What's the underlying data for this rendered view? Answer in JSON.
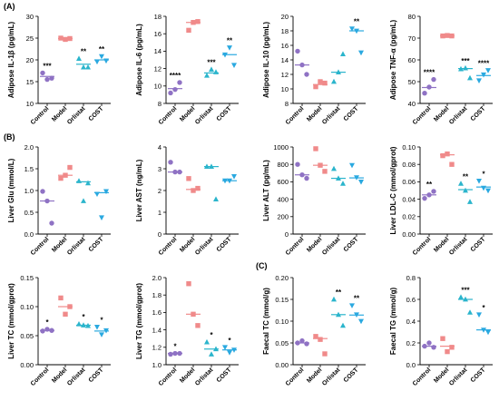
{
  "panel_labels": {
    "A": "(A)",
    "B": "(B)",
    "C": "(C)"
  },
  "colors": {
    "Control": "#8f72c4",
    "Model": "#f08a8a",
    "Orlistat": "#2bb5cc",
    "COST": "#2aa9e0"
  },
  "chart_data": [
    {
      "type": "scatter",
      "ylabel": "Adipose IL-1β (pg/mL)",
      "categories": [
        "Control",
        "Model",
        "Orlistat",
        "COST"
      ],
      "ylim": [
        10,
        30
      ],
      "yticks": [
        10,
        15,
        20,
        25,
        30
      ],
      "tick_labels": [
        "10",
        "15",
        "20",
        "25",
        "30"
      ],
      "markers": [
        "circle",
        "square",
        "triangle-up",
        "triangle-down"
      ],
      "points": [
        [
          17,
          15.5,
          15.8
        ],
        [
          25,
          24.7,
          24.9
        ],
        [
          20.3,
          18.3,
          18.3
        ],
        [
          19.6,
          20.8,
          19.8
        ]
      ],
      "means": [
        16.2,
        24.9,
        19,
        20
      ],
      "significance": [
        "***",
        "",
        "**",
        "**"
      ]
    },
    {
      "type": "scatter",
      "ylabel": "Adipose IL-6 (pg/mL)",
      "categories": [
        "Control",
        "Model",
        "Orlistat",
        "COST"
      ],
      "ylim": [
        8,
        18
      ],
      "yticks": [
        8,
        10,
        12,
        14,
        16,
        18
      ],
      "tick_labels": [
        "8",
        "10",
        "12",
        "14",
        "16",
        "18"
      ],
      "markers": [
        "circle",
        "square",
        "triangle-up",
        "triangle-down"
      ],
      "points": [
        [
          9.2,
          9.6,
          10.4
        ],
        [
          16.4,
          17.3,
          17.4
        ],
        [
          11.2,
          11.9,
          11.6
        ],
        [
          13.6,
          14.4,
          12.4
        ]
      ],
      "means": [
        9.7,
        17.3,
        11.5,
        13.6
      ],
      "significance": [
        "****",
        "",
        "***",
        "**"
      ]
    },
    {
      "type": "scatter",
      "ylabel": "Adipose IL-10 (pg/mL)",
      "categories": [
        "Control",
        "Model",
        "Orlistat",
        "COST"
      ],
      "ylim": [
        8,
        20
      ],
      "yticks": [
        8,
        10,
        12,
        14,
        16,
        18,
        20
      ],
      "tick_labels": [
        "8",
        "10",
        "12",
        "14",
        "16",
        "18",
        "20"
      ],
      "markers": [
        "circle",
        "square",
        "triangle-up",
        "triangle-down"
      ],
      "points": [
        [
          15.2,
          13.3,
          12
        ],
        [
          10.3,
          11,
          10.8
        ],
        [
          11,
          12.3,
          14.8
        ],
        [
          18.3,
          18,
          15
        ]
      ],
      "means": [
        13.3,
        10.6,
        12.3,
        18
      ],
      "significance": [
        "",
        "",
        "",
        "**"
      ]
    },
    {
      "type": "scatter",
      "ylabel": "Adipose TNF-α (pg/mL)",
      "categories": [
        "Control",
        "Model",
        "Orlistat",
        "COST"
      ],
      "ylim": [
        40,
        80
      ],
      "yticks": [
        40,
        50,
        60,
        70,
        80
      ],
      "tick_labels": [
        "40",
        "50",
        "60",
        "70",
        "80"
      ],
      "markers": [
        "circle",
        "square",
        "triangle-up",
        "triangle-down"
      ],
      "points": [
        [
          44.7,
          47.5,
          51
        ],
        [
          71,
          71.2,
          71
        ],
        [
          55.8,
          56.2,
          51.7
        ],
        [
          50.5,
          53.2,
          55.2
        ]
      ],
      "means": [
        47.3,
        71,
        56,
        52.8
      ],
      "significance": [
        "****",
        "",
        "***",
        "****"
      ]
    },
    {
      "type": "scatter",
      "ylabel": "Liver Glu (mmol/L)",
      "categories": [
        "Control",
        "Model",
        "Orlistat",
        "COST"
      ],
      "ylim": [
        0,
        2
      ],
      "yticks": [
        0,
        0.5,
        1,
        1.5,
        2
      ],
      "tick_labels": [
        "0.0",
        "0.5",
        "1.0",
        "1.5",
        "2.0"
      ],
      "markers": [
        "circle",
        "square",
        "triangle-up",
        "triangle-down"
      ],
      "points": [
        [
          0.98,
          0.76,
          0.25
        ],
        [
          1.28,
          1.35,
          1.53
        ],
        [
          1.22,
          0.76,
          1.17
        ],
        [
          0.92,
          0.38,
          0.98
        ]
      ],
      "means": [
        0.76,
        1.35,
        1.2,
        0.95
      ],
      "significance": [
        "",
        "",
        "",
        ""
      ]
    },
    {
      "type": "scatter",
      "ylabel": "Liver AST (ng/mL)",
      "categories": [
        "Control",
        "Model",
        "Orlistat",
        "COST"
      ],
      "ylim": [
        0,
        4
      ],
      "yticks": [
        0,
        1,
        2,
        3,
        4
      ],
      "tick_labels": [
        "0",
        "1",
        "2",
        "3",
        "4"
      ],
      "markers": [
        "circle",
        "square",
        "triangle-up",
        "triangle-down"
      ],
      "points": [
        [
          3.3,
          2.85,
          2.85
        ],
        [
          2.55,
          2.0,
          2.1
        ],
        [
          3.1,
          3.1,
          1.6
        ],
        [
          2.45,
          2.45,
          2.65
        ]
      ],
      "means": [
        2.85,
        2.05,
        3.1,
        2.45
      ],
      "significance": [
        "",
        "",
        "",
        ""
      ]
    },
    {
      "type": "scatter",
      "ylabel": "Liver ALT (pg/mL)",
      "categories": [
        "Control",
        "Model",
        "Orlistat",
        "COST"
      ],
      "ylim": [
        0,
        1000
      ],
      "yticks": [
        0,
        200,
        400,
        600,
        800,
        1000
      ],
      "tick_labels": [
        "0",
        "200",
        "400",
        "600",
        "800",
        "1000"
      ],
      "markers": [
        "circle",
        "square",
        "triangle-up",
        "triangle-down"
      ],
      "points": [
        [
          800,
          680,
          640
        ],
        [
          980,
          790,
          720
        ],
        [
          750,
          640,
          580
        ],
        [
          790,
          650,
          600
        ]
      ],
      "means": [
        680,
        790,
        640,
        645
      ],
      "significance": [
        "",
        "",
        "",
        ""
      ]
    },
    {
      "type": "scatter",
      "ylabel": "Liver LDL-C (mmol/gprot)",
      "categories": [
        "Control",
        "Model",
        "Orlistat",
        "COST"
      ],
      "ylim": [
        0,
        0.1
      ],
      "yticks": [
        0,
        0.02,
        0.04,
        0.06,
        0.08,
        0.1
      ],
      "tick_labels": [
        "0.00",
        "0.02",
        "0.04",
        "0.06",
        "0.08",
        "0.10"
      ],
      "markers": [
        "circle",
        "square",
        "triangle-up",
        "triangle-down"
      ],
      "points": [
        [
          0.041,
          0.045,
          0.049
        ],
        [
          0.09,
          0.092,
          0.08
        ],
        [
          0.058,
          0.05,
          0.037
        ],
        [
          0.061,
          0.053,
          0.05
        ]
      ],
      "means": [
        0.045,
        0.091,
        0.051,
        0.054
      ],
      "significance": [
        "**",
        "",
        "**",
        "*"
      ]
    },
    {
      "type": "scatter",
      "ylabel": "Liver TC (mmol/gprot)",
      "categories": [
        "Control",
        "Model",
        "Orlistat",
        "COST"
      ],
      "ylim": [
        0,
        0.15
      ],
      "yticks": [
        0,
        0.05,
        0.1,
        0.15
      ],
      "tick_labels": [
        "0.00",
        "0.05",
        "0.10",
        "0.15"
      ],
      "markers": [
        "circle",
        "square",
        "triangle-up",
        "triangle-down"
      ],
      "points": [
        [
          0.058,
          0.061,
          0.059
        ],
        [
          0.115,
          0.087,
          0.1
        ],
        [
          0.07,
          0.068,
          0.067
        ],
        [
          0.065,
          0.052,
          0.059
        ]
      ],
      "means": [
        0.059,
        0.1,
        0.068,
        0.058
      ],
      "significance": [
        "*",
        "",
        "*",
        "*"
      ]
    },
    {
      "type": "scatter",
      "ylabel": "Liver TG (mmol/gprot)",
      "categories": [
        "Control",
        "Model",
        "Orlistat",
        "COST"
      ],
      "ylim": [
        1.0,
        2.0
      ],
      "yticks": [
        1.0,
        1.2,
        1.4,
        1.6,
        1.8,
        2.0
      ],
      "tick_labels": [
        "1.0",
        "1.2",
        "1.4",
        "1.6",
        "1.8",
        "2.0"
      ],
      "markers": [
        "circle",
        "square",
        "triangle-up",
        "triangle-down"
      ],
      "points": [
        [
          1.12,
          1.13,
          1.13
        ],
        [
          1.93,
          1.58,
          1.45
        ],
        [
          1.26,
          1.12,
          1.18
        ],
        [
          1.2,
          1.14,
          1.17
        ]
      ],
      "means": [
        1.13,
        1.58,
        1.18,
        1.17
      ],
      "significance": [
        "*",
        "",
        "*",
        "*"
      ]
    },
    {
      "type": "scatter",
      "ylabel": "Faecal TC (mmol/g)",
      "categories": [
        "Control",
        "Model",
        "Orlistat",
        "COST"
      ],
      "ylim": [
        0,
        0.2
      ],
      "yticks": [
        0,
        0.05,
        0.1,
        0.15,
        0.2
      ],
      "tick_labels": [
        "0.00",
        "0.05",
        "0.10",
        "0.15",
        "0.20"
      ],
      "markers": [
        "circle",
        "square",
        "triangle-up",
        "triangle-down"
      ],
      "points": [
        [
          0.05,
          0.055,
          0.048
        ],
        [
          0.065,
          0.058,
          0.025
        ],
        [
          0.15,
          0.115,
          0.09
        ],
        [
          0.136,
          0.115,
          0.1
        ]
      ],
      "means": [
        0.05,
        0.06,
        0.115,
        0.114
      ],
      "significance": [
        "",
        "",
        "**",
        "**"
      ]
    },
    {
      "type": "scatter",
      "ylabel": "Faecal TG (mmol/g)",
      "categories": [
        "Control",
        "Model",
        "Orlistat",
        "COST"
      ],
      "ylim": [
        0,
        0.8
      ],
      "yticks": [
        0,
        0.2,
        0.4,
        0.6,
        0.8
      ],
      "tick_labels": [
        "0.0",
        "0.2",
        "0.4",
        "0.6",
        "0.8"
      ],
      "markers": [
        "circle",
        "square",
        "triangle-up",
        "triangle-down"
      ],
      "points": [
        [
          0.17,
          0.2,
          0.16
        ],
        [
          0.24,
          0.12,
          0.16
        ],
        [
          0.62,
          0.6,
          0.48
        ],
        [
          0.46,
          0.32,
          0.3
        ]
      ],
      "means": [
        0.17,
        0.17,
        0.6,
        0.32
      ],
      "significance": [
        "",
        "",
        "***",
        "*"
      ]
    }
  ]
}
